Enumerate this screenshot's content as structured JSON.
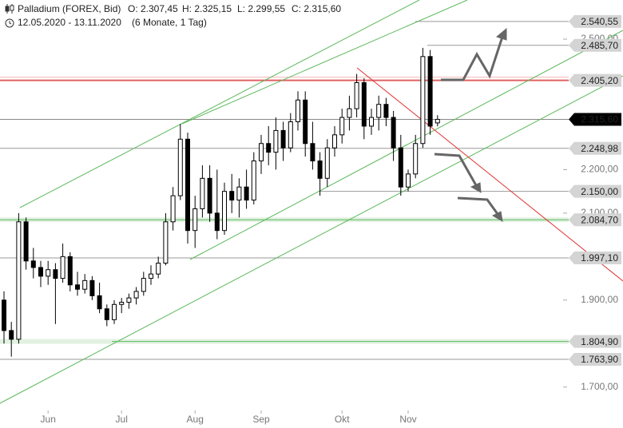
{
  "header": {
    "instrument": "Palladium (FOREX, Bid)",
    "ohlc": [
      "O: 2.307,45",
      "H: 2.325,15",
      "L: 2.299,55",
      "C: 2.315,60"
    ],
    "range": "12.05.2020 - 13.11.2020",
    "period": "(6 Monate, 1 Tag)"
  },
  "chart_data": {
    "type": "candlestick",
    "categories": [
      null,
      null,
      null,
      null,
      null,
      null,
      "Jun",
      null,
      null,
      null,
      null,
      null,
      null,
      null,
      null,
      null,
      "Jul",
      null,
      null,
      null,
      null,
      null,
      null,
      null,
      null,
      null,
      "Aug",
      null,
      null,
      null,
      null,
      null,
      null,
      null,
      null,
      "Sep",
      null,
      null,
      null,
      null,
      null,
      null,
      null,
      null,
      null,
      null,
      "Okt",
      null,
      null,
      null,
      null,
      null,
      null,
      null,
      null,
      "Nov",
      null,
      null,
      null,
      null
    ],
    "open": [
      1900,
      1830,
      1810,
      2080,
      1990,
      1975,
      1955,
      1970,
      1950,
      2000,
      1935,
      1925,
      1945,
      1910,
      1880,
      1855,
      1890,
      1895,
      1905,
      1920,
      1950,
      1960,
      1985,
      2080,
      2140,
      2270,
      2060,
      2110,
      2180,
      2100,
      2060,
      2150,
      2130,
      2160,
      2130,
      2220,
      2260,
      2240,
      2290,
      2250,
      2310,
      2360,
      2260,
      2220,
      2180,
      2250,
      2280,
      2320,
      2340,
      2400,
      2300,
      2320,
      2350,
      2320,
      2250,
      2160,
      2190,
      2260,
      2460,
      2307.45
    ],
    "high": [
      1920,
      1850,
      2100,
      2090,
      2020,
      1990,
      1990,
      1985,
      2030,
      2010,
      1965,
      1960,
      1955,
      1940,
      1890,
      1900,
      1905,
      1915,
      1930,
      1965,
      1980,
      2000,
      2100,
      2160,
      2305,
      2285,
      2140,
      2210,
      2210,
      2200,
      2170,
      2190,
      2180,
      2200,
      2240,
      2280,
      2300,
      2320,
      2310,
      2330,
      2380,
      2380,
      2310,
      2240,
      2270,
      2300,
      2340,
      2370,
      2420,
      2410,
      2340,
      2370,
      2365,
      2335,
      2280,
      2200,
      2280,
      2480,
      2475,
      2325.15
    ],
    "low": [
      1800,
      1770,
      1800,
      1970,
      1950,
      1930,
      1935,
      1845,
      1940,
      1920,
      1910,
      1915,
      1900,
      1870,
      1840,
      1845,
      1870,
      1880,
      1890,
      1910,
      1935,
      1950,
      1980,
      2060,
      2130,
      2030,
      2020,
      2090,
      2080,
      2040,
      2050,
      2100,
      2090,
      2110,
      2120,
      2190,
      2210,
      2200,
      2220,
      2240,
      2290,
      2230,
      2200,
      2140,
      2160,
      2230,
      2260,
      2290,
      2320,
      2270,
      2280,
      2290,
      2300,
      2220,
      2140,
      2150,
      2180,
      2250,
      2280,
      2299.55
    ],
    "close": [
      1830,
      1810,
      2080,
      1990,
      1975,
      1955,
      1970,
      1950,
      2000,
      1935,
      1925,
      1945,
      1910,
      1880,
      1855,
      1890,
      1895,
      1905,
      1920,
      1950,
      1960,
      1985,
      2080,
      2140,
      2270,
      2060,
      2110,
      2180,
      2100,
      2060,
      2150,
      2130,
      2160,
      2130,
      2220,
      2260,
      2240,
      2290,
      2250,
      2310,
      2360,
      2260,
      2220,
      2180,
      2250,
      2280,
      2320,
      2340,
      2400,
      2300,
      2320,
      2350,
      2320,
      2250,
      2160,
      2190,
      2260,
      2460,
      2300,
      2315.6
    ],
    "up_color": "#ffffff",
    "down_color": "#000000",
    "ylim": [
      1650,
      2590
    ],
    "yticks": [
      {
        "value": 2500,
        "label": "2.500,00"
      },
      {
        "value": 2200,
        "label": "2.200,00"
      },
      {
        "value": 2100,
        "label": "2.100,00"
      },
      {
        "value": 1900,
        "label": "1.900,00"
      },
      {
        "value": 1700,
        "label": "1.700,00"
      }
    ],
    "levels": [
      {
        "value": 2540.55,
        "label": "2.540,55",
        "color": "#999999",
        "label_color": "#d4d4d4"
      },
      {
        "value": 2485.7,
        "label": "2.485,70",
        "color": "#999999",
        "label_color": "#d4d4d4"
      },
      {
        "value": 2405.2,
        "label": "2.405,20",
        "color": "#e06060",
        "label_color": "#d4d4d4"
      },
      {
        "value": 2315.6,
        "label": "2.315,60",
        "color": "#888888",
        "label_color": "#000000"
      },
      {
        "value": 2248.98,
        "label": "2.248,98",
        "color": "#999999",
        "label_color": "#d4d4d4"
      },
      {
        "value": 2150,
        "label": "2.150,00",
        "color": "#999999",
        "label_color": "#d4d4d4"
      },
      {
        "value": 2084.7,
        "label": "2.084,70",
        "color": "#5cb85c",
        "label_color": "#d4d4d4"
      },
      {
        "value": 1997.1,
        "label": "1.997,10",
        "color": "#999999",
        "label_color": "#d4d4d4"
      },
      {
        "value": 1804.9,
        "label": "1.804,90",
        "color": "#5cb85c",
        "label_color": "#d4d4d4"
      },
      {
        "value": 1763.9,
        "label": "1.763,90",
        "color": "#999999",
        "label_color": "#d4d4d4"
      }
    ]
  }
}
